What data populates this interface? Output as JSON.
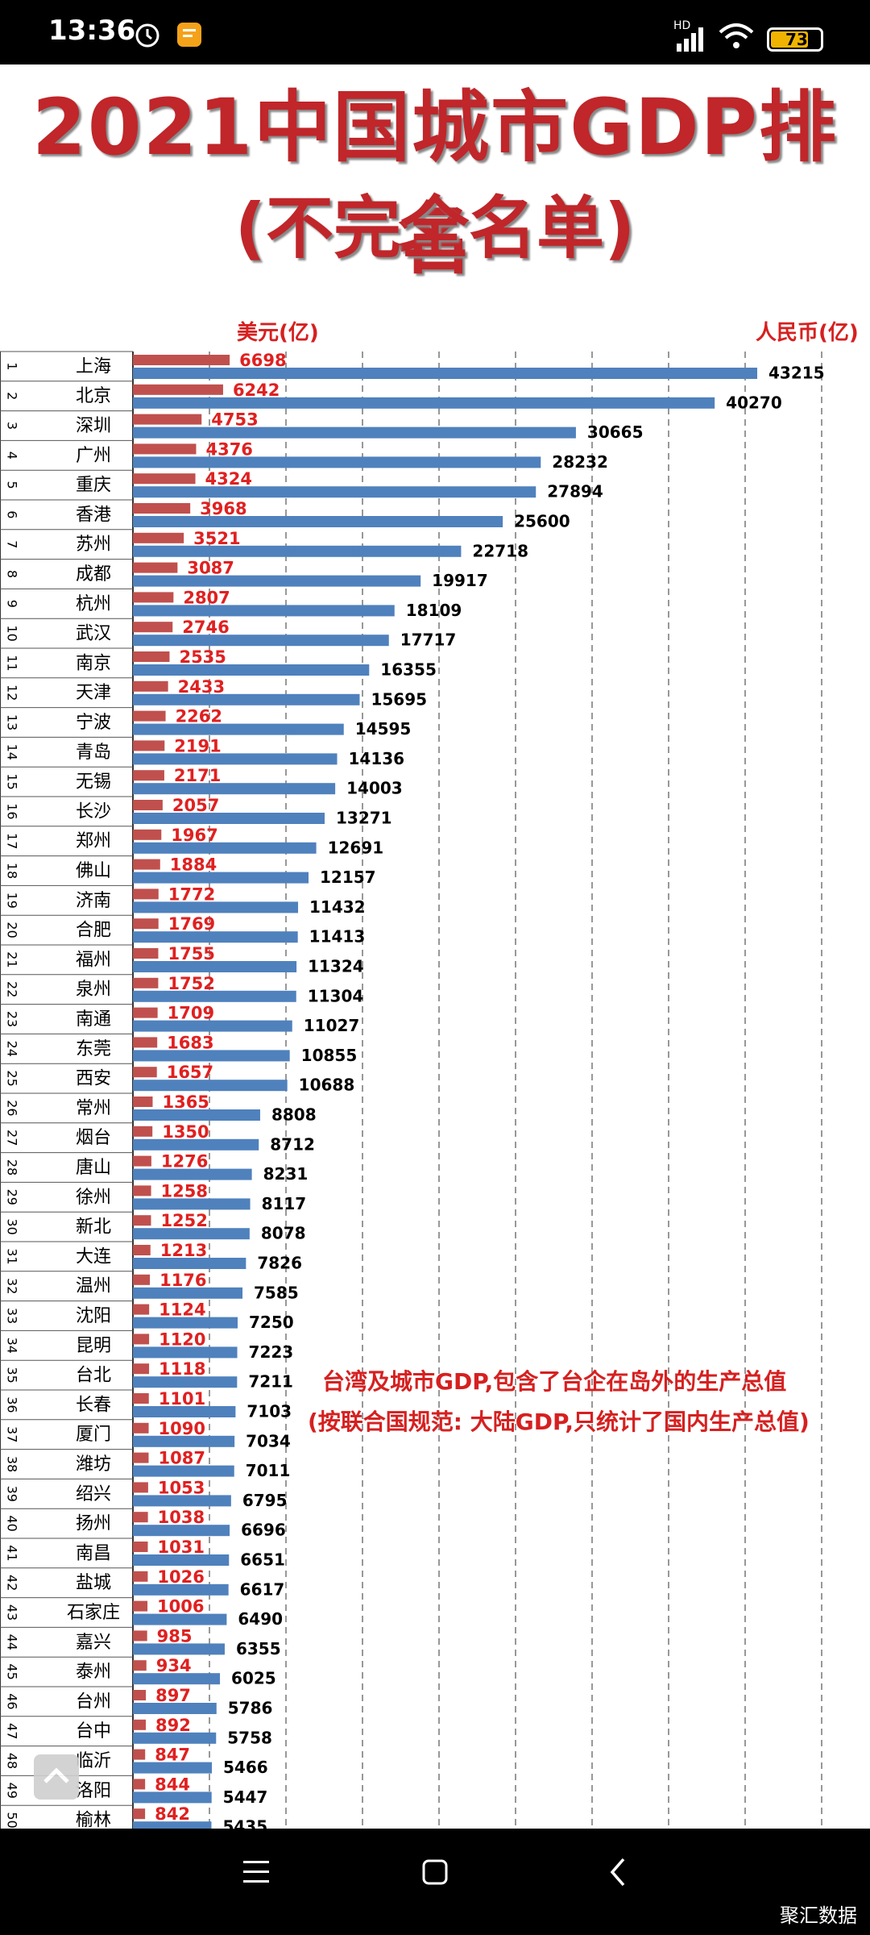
{
  "status_bar": {
    "time": "13:36",
    "battery": "73",
    "network": "HD"
  },
  "title": "2021中国城市GDP排名",
  "subtitle": "(不完全名单)",
  "colors": {
    "usd_bar": "#c0504d",
    "rmb_bar": "#4f81bd",
    "usd_text": "#e02020",
    "rmb_text": "#000000",
    "title": "#c0262a"
  },
  "notes": [
    "台湾及城市GDP,包含了台企在岛外的生产总值",
    "(按联合国规范: 大陆GDP,只统计了国内生产总值)"
  ],
  "nav": {
    "watermark": "聚汇数据"
  },
  "chart_data": {
    "type": "bar",
    "orientation": "horizontal",
    "grid": true,
    "series": [
      {
        "name": "美元(亿)",
        "values": [
          6698,
          6242,
          4753,
          4376,
          4324,
          3968,
          3521,
          3087,
          2807,
          2746,
          2535,
          2433,
          2262,
          2191,
          2171,
          2057,
          1967,
          1884,
          1772,
          1769,
          1755,
          1752,
          1709,
          1683,
          1657,
          1365,
          1350,
          1276,
          1258,
          1252,
          1213,
          1176,
          1124,
          1120,
          1118,
          1101,
          1090,
          1087,
          1053,
          1038,
          1031,
          1026,
          1006,
          985,
          934,
          897,
          892,
          847,
          844,
          842
        ]
      },
      {
        "name": "人民币(亿)",
        "values": [
          43215,
          40270,
          30665,
          28232,
          27894,
          25600,
          22718,
          19917,
          18109,
          17717,
          16355,
          15695,
          14595,
          14136,
          14003,
          13271,
          12691,
          12157,
          11432,
          11413,
          11324,
          11304,
          11027,
          10855,
          10688,
          8808,
          8712,
          8231,
          8117,
          8078,
          7826,
          7585,
          7250,
          7223,
          7211,
          7103,
          7034,
          7011,
          6795,
          6696,
          6651,
          6617,
          6490,
          6355,
          6025,
          5786,
          5758,
          5466,
          5447,
          5435
        ]
      }
    ],
    "ranks": [
      "1",
      "2",
      "3",
      "4",
      "5",
      "6",
      "7",
      "8",
      "9",
      "10",
      "11",
      "12",
      "13",
      "14",
      "15",
      "16",
      "17",
      "18",
      "19",
      "20",
      "21",
      "22",
      "23",
      "24",
      "25",
      "26",
      "27",
      "28",
      "29",
      "30",
      "31",
      "32",
      "33",
      "34",
      "35",
      "36",
      "37",
      "38",
      "39",
      "40",
      "41",
      "42",
      "43",
      "44",
      "45",
      "46",
      "47",
      "48",
      "49",
      "50"
    ],
    "categories": [
      "上海",
      "北京",
      "深圳",
      "广州",
      "重庆",
      "香港",
      "苏州",
      "成都",
      "杭州",
      "武汉",
      "南京",
      "天津",
      "宁波",
      "青岛",
      "无锡",
      "长沙",
      "郑州",
      "佛山",
      "济南",
      "合肥",
      "福州",
      "泉州",
      "南通",
      "东莞",
      "西安",
      "常州",
      "烟台",
      "唐山",
      "徐州",
      "新北",
      "大连",
      "温州",
      "沈阳",
      "昆明",
      "台北",
      "长春",
      "厦门",
      "潍坊",
      "绍兴",
      "扬州",
      "南昌",
      "盐城",
      "石家庄",
      "嘉兴",
      "泰州",
      "台州",
      "台中",
      "临沂",
      "洛阳",
      "榆林"
    ]
  }
}
